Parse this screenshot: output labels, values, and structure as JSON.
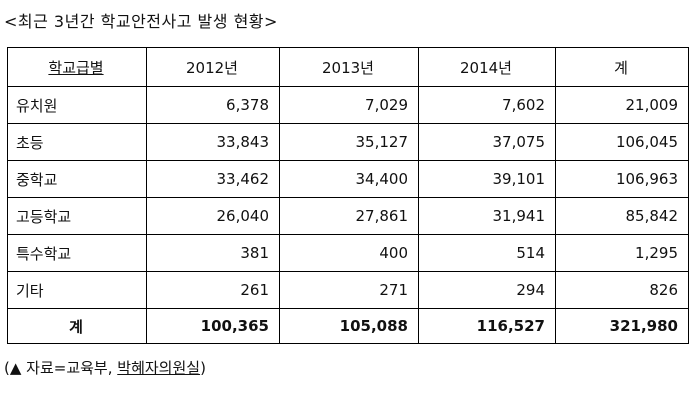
{
  "title": "<최근 3년간 학교안전사고 발생 현황>",
  "table": {
    "headers": [
      "학교급별",
      "2012년",
      "2013년",
      "2014년",
      "계"
    ],
    "rows": [
      {
        "label": "유치원",
        "y2012": "6,378",
        "y2013": "7,029",
        "y2014": "7,602",
        "total": "21,009"
      },
      {
        "label": "초등",
        "y2012": "33,843",
        "y2013": "35,127",
        "y2014": "37,075",
        "total": "106,045"
      },
      {
        "label": "중학교",
        "y2012": "33,462",
        "y2013": "34,400",
        "y2014": "39,101",
        "total": "106,963"
      },
      {
        "label": "고등학교",
        "y2012": "26,040",
        "y2013": "27,861",
        "y2014": "31,941",
        "total": "85,842"
      },
      {
        "label": "특수학교",
        "y2012": "381",
        "y2013": "400",
        "y2014": "514",
        "total": "1,295"
      },
      {
        "label": "기타",
        "y2012": "261",
        "y2013": "271",
        "y2014": "294",
        "total": "826"
      }
    ],
    "total_row": {
      "label": "계",
      "y2012": "100,365",
      "y2013": "105,088",
      "y2014": "116,527",
      "total": "321,980"
    }
  },
  "source": {
    "prefix": "(▲ 자료=교육부, ",
    "office": "박혜자의원실",
    "suffix": ")"
  }
}
